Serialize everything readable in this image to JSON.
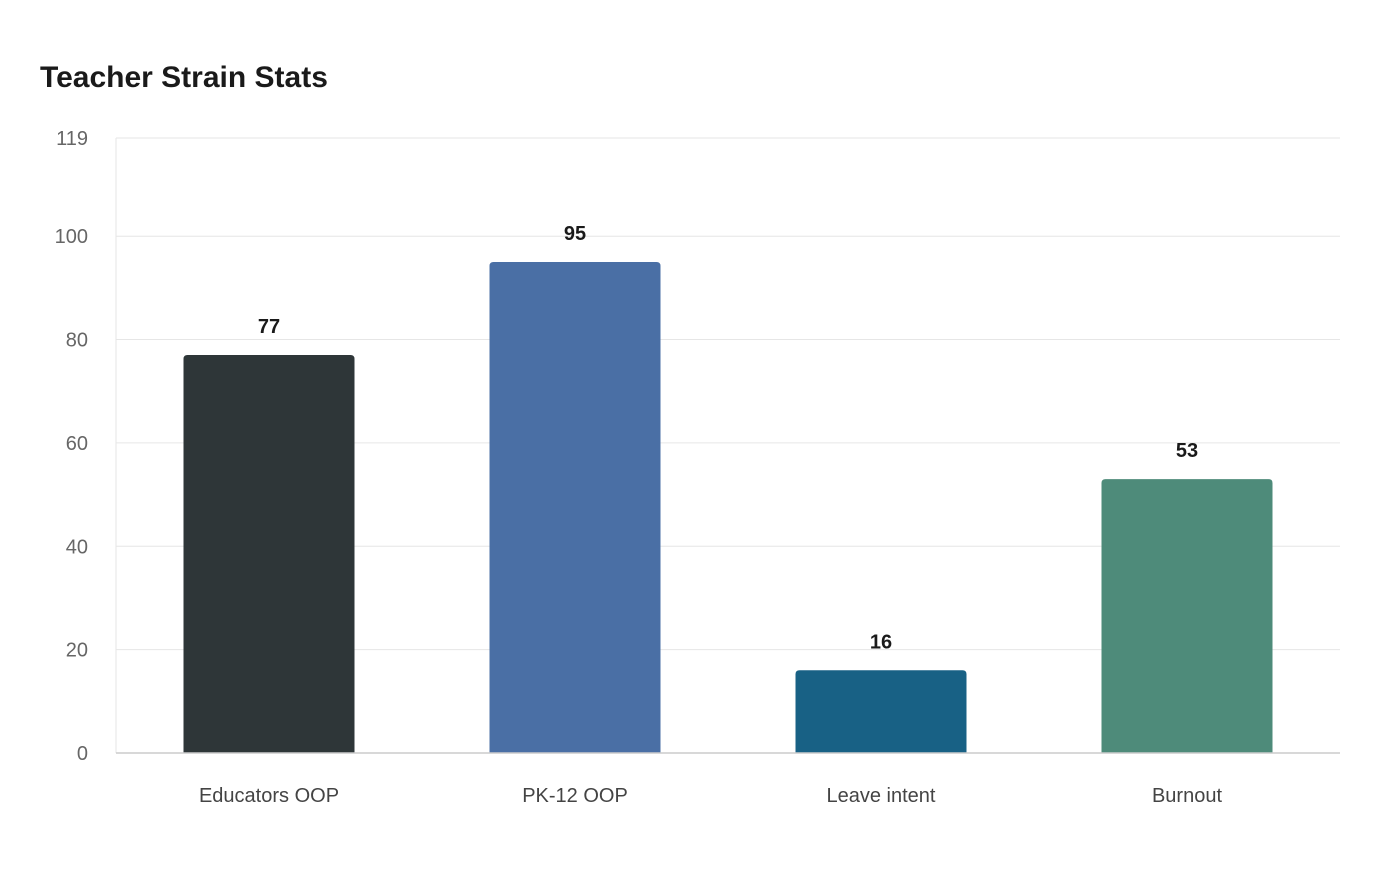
{
  "chart_data": {
    "type": "bar",
    "title": "Teacher Strain Stats",
    "xlabel": "",
    "ylabel": "",
    "categories": [
      "Educators OOP",
      "PK-12 OOP",
      "Leave intent",
      "Burnout"
    ],
    "values": [
      77,
      95,
      16,
      53
    ],
    "colors": [
      "#2e3638",
      "#4a6fa5",
      "#186185",
      "#4e8b7a"
    ],
    "ylim": [
      0,
      119
    ],
    "yticks": [
      0,
      20,
      40,
      60,
      80,
      100,
      119
    ],
    "grid": true,
    "legend": "none",
    "data_labels": true
  }
}
